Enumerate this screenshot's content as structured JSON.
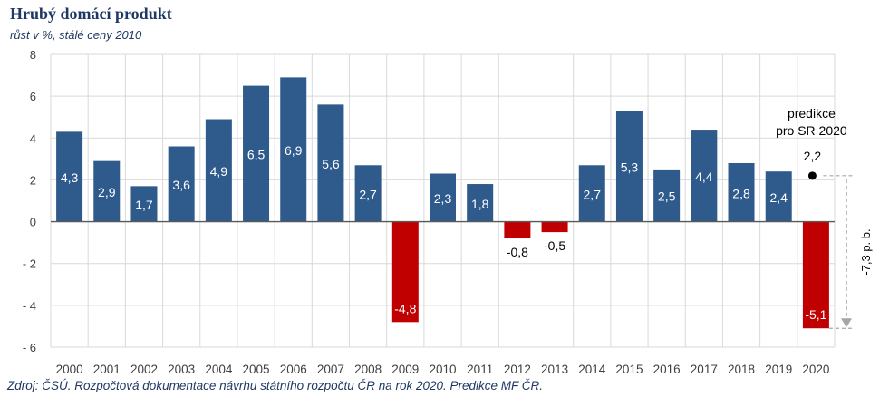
{
  "title": "Hrubý domácí produkt",
  "subtitle": "růst v %, stálé ceny 2010",
  "source": "Zdroj: ČSÚ. Rozpočtová dokumentace návrhu státního rozpočtu ČR na rok 2020. Predikce MF ČR.",
  "colors": {
    "positive": "#2e5a8c",
    "negative": "#c00000",
    "grid": "#d9d9d9",
    "axis": "#595959"
  },
  "chart_data": {
    "type": "bar",
    "title": "Hrubý domácí produkt",
    "subtitle": "růst v %, stálé ceny 2010",
    "xlabel": "",
    "ylabel": "",
    "ylim": [
      -6,
      8
    ],
    "yticks": [
      8,
      6,
      4,
      2,
      0,
      -2,
      -4,
      -6
    ],
    "ytick_labels": [
      "8",
      "6",
      "4",
      "2",
      "0",
      "- 2",
      "- 4",
      "- 6"
    ],
    "grid": true,
    "categories": [
      "2000",
      "2001",
      "2002",
      "2003",
      "2004",
      "2005",
      "2006",
      "2007",
      "2008",
      "2009",
      "2010",
      "2011",
      "2012",
      "2013",
      "2014",
      "2015",
      "2016",
      "2017",
      "2018",
      "2019",
      "2020"
    ],
    "values": [
      4.3,
      2.9,
      1.7,
      3.6,
      4.9,
      6.5,
      6.9,
      5.6,
      2.7,
      -4.8,
      2.3,
      1.8,
      -0.8,
      -0.5,
      2.7,
      5.3,
      2.5,
      4.4,
      2.8,
      2.4,
      -5.1
    ],
    "labels": [
      "4,3",
      "2,9",
      "1,7",
      "3,6",
      "4,9",
      "6,5",
      "6,9",
      "5,6",
      "2,7",
      "-4,8",
      "2,3",
      "1,8",
      "-0,8",
      "-0,5",
      "2,7",
      "5,3",
      "2,5",
      "4,4",
      "2,8",
      "2,4",
      "-5,1"
    ],
    "prediction": {
      "category": "2020",
      "value": 2.2,
      "label": "2,2",
      "text_line1": "predikce",
      "text_line2": "pro SR 2020",
      "difference_label": "-7,3 p. b."
    }
  }
}
